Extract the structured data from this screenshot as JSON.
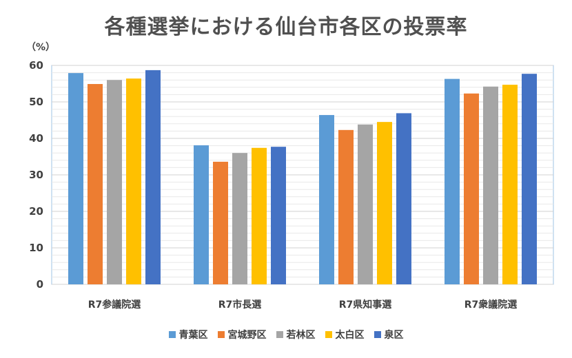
{
  "chart_data": {
    "type": "bar",
    "title": "各種選挙における仙台市各区の投票率",
    "ylabel": "（%）",
    "ylim": [
      0,
      60
    ],
    "yticks": [
      "0",
      "10",
      "20",
      "30",
      "40",
      "50",
      "60"
    ],
    "grid": true,
    "legend_position": "bottom",
    "categories": [
      "R7参議院選",
      "R7市長選",
      "R7県知事選",
      "R7衆議院選"
    ],
    "series": [
      {
        "name": "青葉区",
        "color": "#5B9BD5",
        "values": [
          57.9,
          38.1,
          46.4,
          56.3
        ]
      },
      {
        "name": "宮城野区",
        "color": "#ED7D31",
        "values": [
          54.9,
          33.6,
          42.3,
          52.3
        ]
      },
      {
        "name": "若林区",
        "color": "#A5A5A5",
        "values": [
          56.0,
          36.0,
          43.8,
          54.2
        ]
      },
      {
        "name": "太白区",
        "color": "#FFC000",
        "values": [
          56.4,
          37.4,
          44.5,
          54.7
        ]
      },
      {
        "name": "泉区",
        "color": "#4472C4",
        "values": [
          58.7,
          37.7,
          46.9,
          57.7
        ]
      }
    ]
  }
}
